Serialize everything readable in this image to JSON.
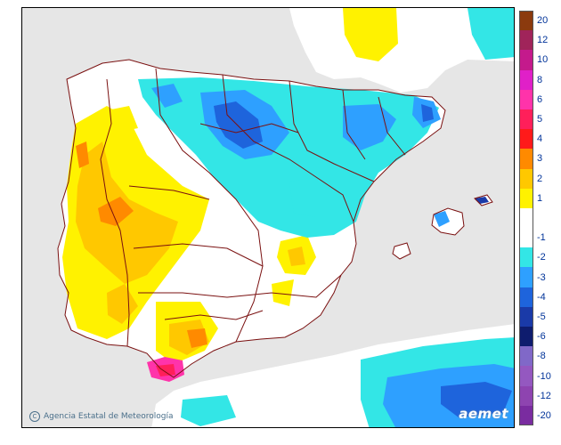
{
  "credit": "Agencia Estatal de Meteorología",
  "brand": "aemet",
  "icons": {
    "copyright": "copyright-icon"
  },
  "colors": {
    "sea": "#e6e6e6",
    "land": "#ffffff",
    "border": "#7a1010",
    "frame": "#000000"
  },
  "legend": [
    {
      "label": "20",
      "color": "#8b3a0e"
    },
    {
      "label": "12",
      "color": "#a0245a"
    },
    {
      "label": "10",
      "color": "#c41a8c"
    },
    {
      "label": "8",
      "color": "#e020c8"
    },
    {
      "label": "6",
      "color": "#ff33aa"
    },
    {
      "label": "5",
      "color": "#ff1f5a"
    },
    {
      "label": "4",
      "color": "#ff1a1a"
    },
    {
      "label": "3",
      "color": "#ff8a00"
    },
    {
      "label": "2",
      "color": "#ffc800"
    },
    {
      "label": "1",
      "color": "#fff200"
    },
    {
      "label": "",
      "color": "#ffffff"
    },
    {
      "label": "-1",
      "color": "#ffffff"
    },
    {
      "label": "-2",
      "color": "#33e6e6"
    },
    {
      "label": "-3",
      "color": "#2ea0ff"
    },
    {
      "label": "-4",
      "color": "#1e64dc"
    },
    {
      "label": "-5",
      "color": "#1a3aa8"
    },
    {
      "label": "-6",
      "color": "#0e1c6e"
    },
    {
      "label": "-8",
      "color": "#8068c8"
    },
    {
      "label": "-10",
      "color": "#9458c0"
    },
    {
      "label": "-12",
      "color": "#8e44b0"
    },
    {
      "label": "-20",
      "color": "#7a2ca0"
    }
  ]
}
